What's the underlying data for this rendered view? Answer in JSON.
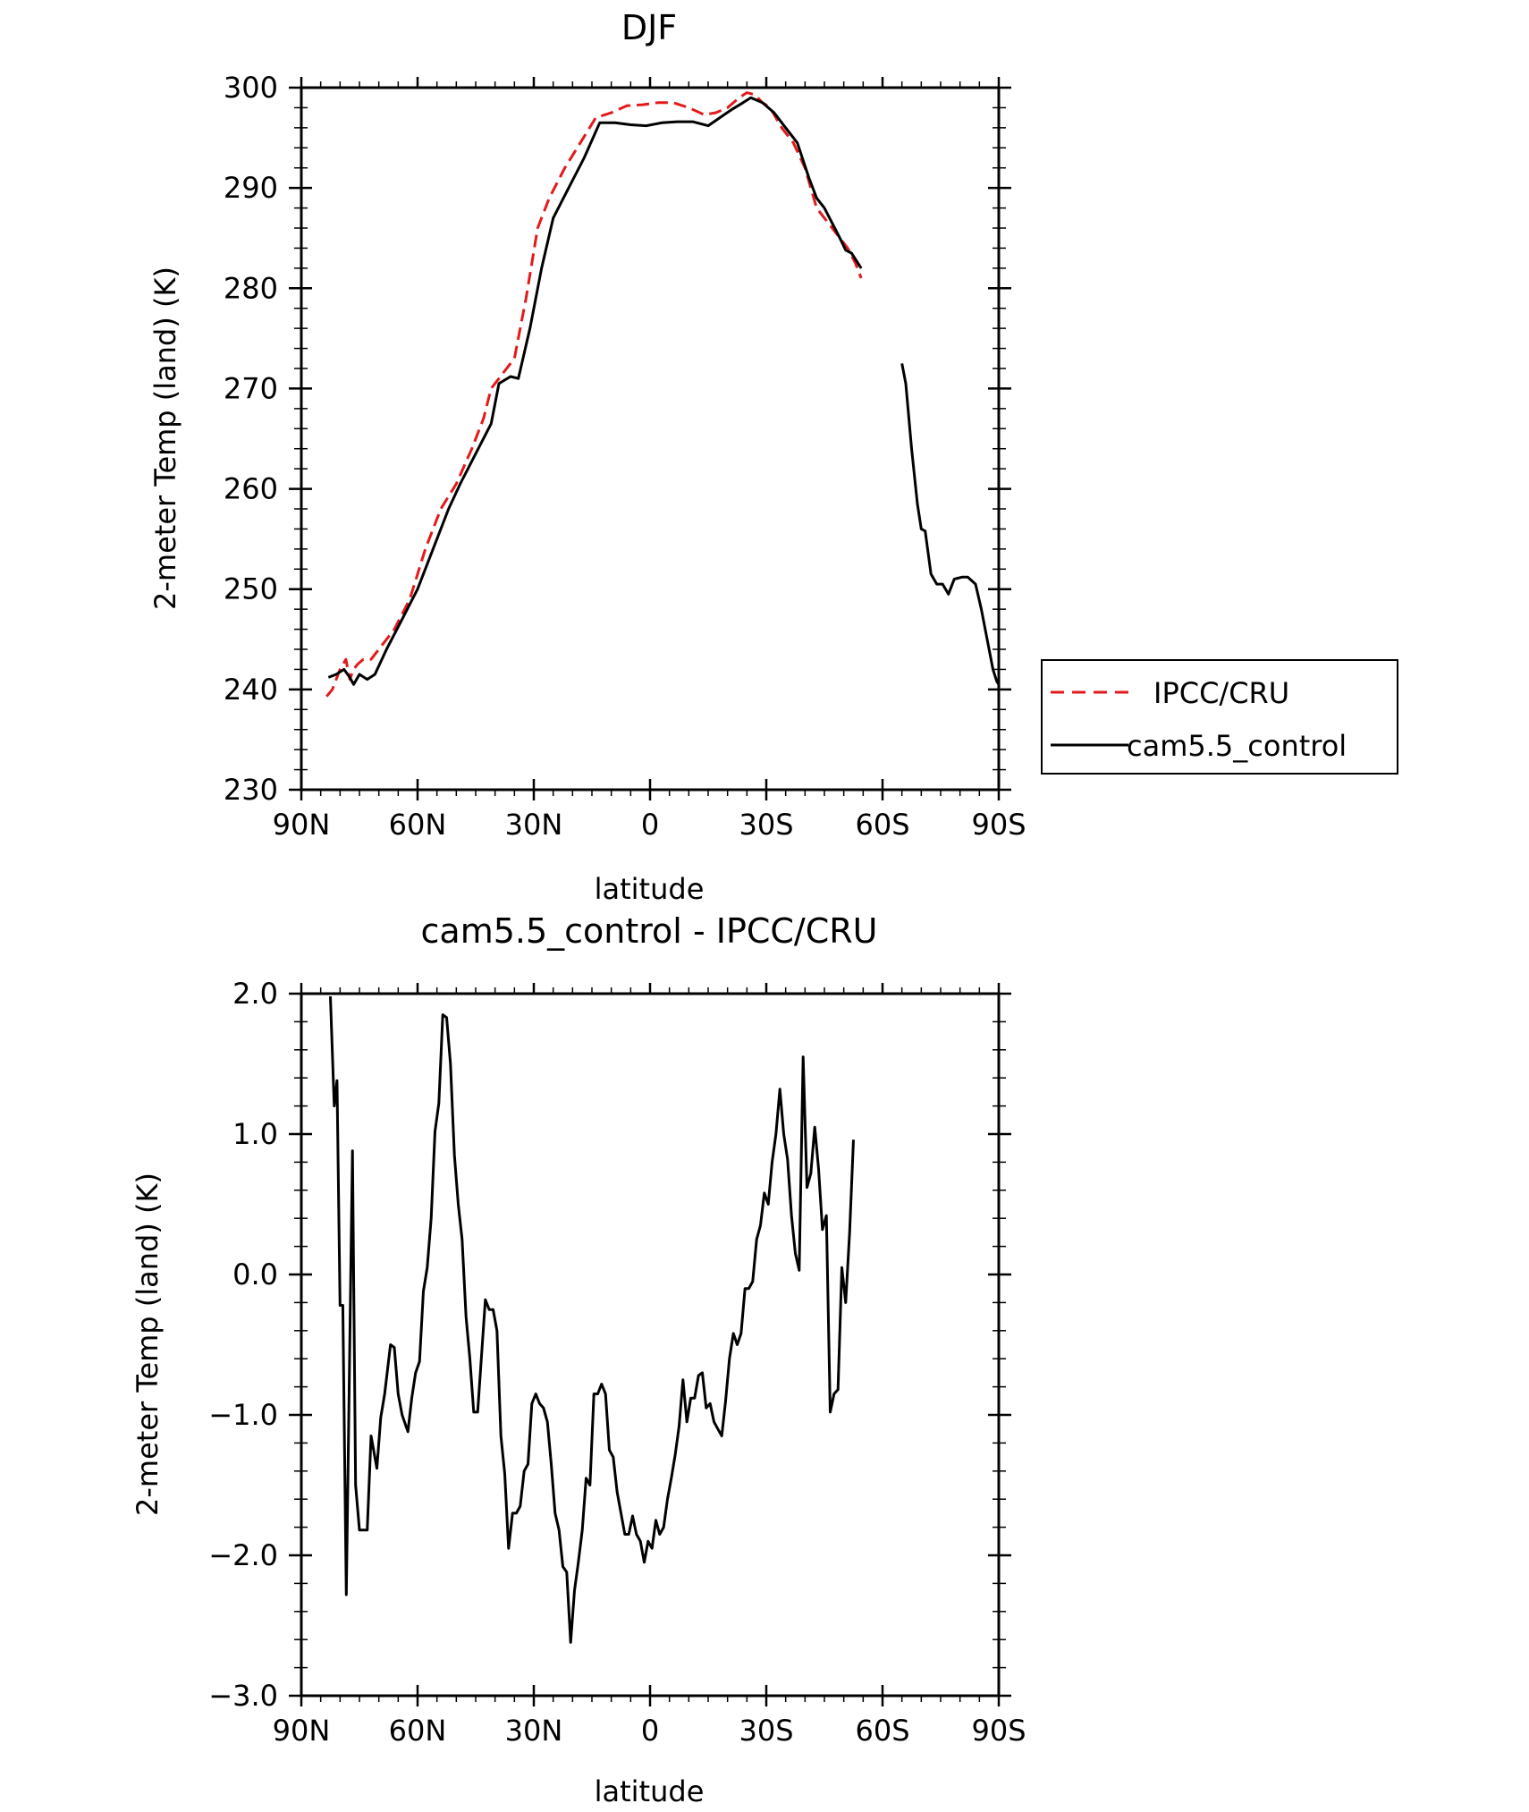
{
  "chart_data": [
    {
      "type": "line",
      "title": "DJF",
      "xlabel": "latitude",
      "ylabel": "2-meter Temp (land) (K)",
      "xlim": [
        90,
        -90
      ],
      "ylim": [
        230,
        300
      ],
      "xticks": [
        90,
        60,
        30,
        0,
        -30,
        -60,
        -90
      ],
      "xtick_labels": [
        "90N",
        "60N",
        "30N",
        "0",
        "30S",
        "60S",
        "90S"
      ],
      "yticks": [
        230,
        240,
        250,
        260,
        270,
        280,
        290,
        300
      ],
      "ytick_labels": [
        "230",
        "240",
        "250",
        "260",
        "270",
        "280",
        "290",
        "300"
      ],
      "grid": false,
      "legend": "right",
      "series": [
        {
          "name": "IPCC/CRU",
          "color": "#e31a1c",
          "dash": "dashed",
          "points": [
            [
              83.5,
              239.3
            ],
            [
              82,
              240
            ],
            [
              80,
              242
            ],
            [
              78.5,
              243
            ],
            [
              77.5,
              241
            ],
            [
              76.5,
              242
            ],
            [
              75.5,
              242.5
            ],
            [
              74,
              243
            ],
            [
              72,
              243
            ],
            [
              70,
              244
            ],
            [
              66,
              246
            ],
            [
              62,
              249
            ],
            [
              58,
              254
            ],
            [
              54,
              258
            ],
            [
              50,
              260.5
            ],
            [
              46,
              264
            ],
            [
              43,
              267
            ],
            [
              41,
              270
            ],
            [
              38,
              271.5
            ],
            [
              35,
              273
            ],
            [
              32,
              279
            ],
            [
              29,
              286
            ],
            [
              26,
              289
            ],
            [
              22,
              292
            ],
            [
              18,
              294.5
            ],
            [
              14,
              297
            ],
            [
              10,
              297.5
            ],
            [
              6,
              298.2
            ],
            [
              2,
              298.3
            ],
            [
              -2,
              298.5
            ],
            [
              -6,
              298.5
            ],
            [
              -10,
              298
            ],
            [
              -14,
              297.3
            ],
            [
              -17,
              297.5
            ],
            [
              -20,
              298
            ],
            [
              -23,
              299
            ],
            [
              -25,
              299.5
            ],
            [
              -27,
              299.3
            ],
            [
              -29,
              298.5
            ],
            [
              -31,
              298
            ],
            [
              -34,
              296
            ],
            [
              -37,
              294.5
            ],
            [
              -40,
              292
            ],
            [
              -43,
              288
            ],
            [
              -45,
              287
            ],
            [
              -47,
              286
            ],
            [
              -49,
              285
            ],
            [
              -51,
              284
            ],
            [
              -53,
              282.5
            ],
            [
              -54.5,
              281
            ]
          ]
        },
        {
          "name": "cam5.5_control",
          "color": "#000000",
          "dash": "solid",
          "points": [
            [
              83,
              241.2
            ],
            [
              81,
              241.5
            ],
            [
              79,
              242
            ],
            [
              77.5,
              241.2
            ],
            [
              76.5,
              240.5
            ],
            [
              75,
              241.5
            ],
            [
              73,
              241
            ],
            [
              71,
              241.5
            ],
            [
              68,
              244
            ],
            [
              64,
              247
            ],
            [
              60,
              250
            ],
            [
              56,
              254
            ],
            [
              52,
              258
            ],
            [
              49,
              260.5
            ],
            [
              45,
              263.5
            ],
            [
              41,
              266.5
            ],
            [
              39,
              270.5
            ],
            [
              36,
              271.2
            ],
            [
              34,
              271
            ],
            [
              31,
              276
            ],
            [
              28,
              282
            ],
            [
              25,
              287
            ],
            [
              21,
              290
            ],
            [
              17,
              293
            ],
            [
              13,
              296.5
            ],
            [
              9,
              296.5
            ],
            [
              5,
              296.3
            ],
            [
              1,
              296.2
            ],
            [
              -3,
              296.5
            ],
            [
              -7,
              296.6
            ],
            [
              -11,
              296.6
            ],
            [
              -15,
              296.2
            ],
            [
              -18,
              297
            ],
            [
              -21,
              297.8
            ],
            [
              -24,
              298.5
            ],
            [
              -26,
              299
            ],
            [
              -29,
              298.5
            ],
            [
              -32,
              297.5
            ],
            [
              -35,
              296
            ],
            [
              -38,
              294.5
            ],
            [
              -41,
              291
            ],
            [
              -43,
              289
            ],
            [
              -45,
              288
            ],
            [
              -47,
              286.5
            ],
            [
              -49,
              285
            ],
            [
              -50.5,
              283.8
            ],
            [
              -52,
              283.5
            ],
            [
              -54.5,
              282
            ]
          ],
          "points2": [
            [
              -65,
              272.5
            ],
            [
              -66,
              270.5
            ],
            [
              -67.5,
              264
            ],
            [
              -69,
              258.5
            ],
            [
              -70,
              256
            ],
            [
              -71,
              255.8
            ],
            [
              -72.5,
              251.5
            ],
            [
              -74,
              250.5
            ],
            [
              -75.5,
              250.5
            ],
            [
              -77,
              249.5
            ],
            [
              -78.5,
              251
            ],
            [
              -80.5,
              251.2
            ],
            [
              -82,
              251.2
            ],
            [
              -84,
              250.5
            ],
            [
              -85.5,
              248
            ],
            [
              -87,
              245
            ],
            [
              -88.5,
              242
            ],
            [
              -89.5,
              240.8
            ],
            [
              -90,
              240.5
            ]
          ]
        }
      ]
    },
    {
      "type": "line",
      "title": "cam5.5_control - IPCC/CRU",
      "xlabel": "latitude",
      "ylabel": "2-meter Temp (land) (K)",
      "xlim": [
        90,
        -90
      ],
      "ylim": [
        -3.0,
        2.0
      ],
      "xticks": [
        90,
        60,
        30,
        0,
        -30,
        -60,
        -90
      ],
      "xtick_labels": [
        "90N",
        "60N",
        "30N",
        "0",
        "30S",
        "60S",
        "90S"
      ],
      "yticks": [
        -3.0,
        -2.0,
        -1.0,
        0.0,
        1.0,
        2.0
      ],
      "ytick_labels": [
        "−3.0",
        "−2.0",
        "−1.0",
        "0.0",
        "1.0",
        "2.0"
      ],
      "grid": false,
      "series": [
        {
          "color": "#000000",
          "dash": "solid",
          "points": [
            [
              82.5,
              1.98
            ],
            [
              81.5,
              1.2
            ],
            [
              80.8,
              1.38
            ],
            [
              80,
              -0.22
            ],
            [
              79.3,
              -0.22
            ],
            [
              78.4,
              -2.28
            ],
            [
              76.8,
              0.88
            ],
            [
              76,
              -1.5
            ],
            [
              75,
              -1.82
            ],
            [
              74,
              -1.82
            ],
            [
              73,
              -1.82
            ],
            [
              72,
              -1.15
            ],
            [
              70.5,
              -1.38
            ],
            [
              69.5,
              -1.02
            ],
            [
              68.5,
              -0.85
            ],
            [
              67,
              -0.5
            ],
            [
              66,
              -0.52
            ],
            [
              65,
              -0.85
            ],
            [
              64,
              -1.0
            ],
            [
              62.5,
              -1.12
            ],
            [
              61.5,
              -0.88
            ],
            [
              60.5,
              -0.7
            ],
            [
              59.5,
              -0.62
            ],
            [
              58.5,
              -0.12
            ],
            [
              57.5,
              0.05
            ],
            [
              56.5,
              0.4
            ],
            [
              55.5,
              1.02
            ],
            [
              54.5,
              1.22
            ],
            [
              53.5,
              1.85
            ],
            [
              52.5,
              1.83
            ],
            [
              51.5,
              1.5
            ],
            [
              50.5,
              0.85
            ],
            [
              49.5,
              0.5
            ],
            [
              48.5,
              0.25
            ],
            [
              47.5,
              -0.3
            ],
            [
              46.5,
              -0.6
            ],
            [
              45.5,
              -0.98
            ],
            [
              44.5,
              -0.98
            ],
            [
              43.5,
              -0.58
            ],
            [
              42.5,
              -0.18
            ],
            [
              41.5,
              -0.25
            ],
            [
              40.5,
              -0.25
            ],
            [
              39.5,
              -0.4
            ],
            [
              38.5,
              -1.15
            ],
            [
              37.5,
              -1.42
            ],
            [
              36.5,
              -1.95
            ],
            [
              35.5,
              -1.7
            ],
            [
              34.5,
              -1.7
            ],
            [
              33.5,
              -1.65
            ],
            [
              32.5,
              -1.4
            ],
            [
              31.5,
              -1.35
            ],
            [
              30.5,
              -0.92
            ],
            [
              29.5,
              -0.85
            ],
            [
              28.5,
              -0.92
            ],
            [
              27.5,
              -0.95
            ],
            [
              26.5,
              -1.05
            ],
            [
              25.5,
              -1.35
            ],
            [
              24.5,
              -1.7
            ],
            [
              23.5,
              -1.82
            ],
            [
              22.5,
              -2.08
            ],
            [
              21.5,
              -2.12
            ],
            [
              20.5,
              -2.62
            ],
            [
              19.5,
              -2.25
            ],
            [
              18.5,
              -2.05
            ],
            [
              17.5,
              -1.82
            ],
            [
              16.5,
              -1.45
            ],
            [
              15.5,
              -1.5
            ],
            [
              14.5,
              -0.85
            ],
            [
              13.5,
              -0.85
            ],
            [
              12.5,
              -0.78
            ],
            [
              11.5,
              -0.85
            ],
            [
              10.5,
              -1.25
            ],
            [
              9.5,
              -1.3
            ],
            [
              8.5,
              -1.55
            ],
            [
              7.5,
              -1.7
            ],
            [
              6.5,
              -1.85
            ],
            [
              5.5,
              -1.85
            ],
            [
              4.5,
              -1.72
            ],
            [
              3.5,
              -1.85
            ],
            [
              2.5,
              -1.9
            ],
            [
              1.5,
              -2.05
            ],
            [
              0.5,
              -1.9
            ],
            [
              -0.5,
              -1.95
            ],
            [
              -1.5,
              -1.75
            ],
            [
              -2.5,
              -1.85
            ],
            [
              -3.5,
              -1.8
            ],
            [
              -4.5,
              -1.6
            ],
            [
              -5.5,
              -1.45
            ],
            [
              -6.5,
              -1.28
            ],
            [
              -7.5,
              -1.08
            ],
            [
              -8.5,
              -0.75
            ],
            [
              -9.5,
              -1.05
            ],
            [
              -10.5,
              -0.88
            ],
            [
              -11.5,
              -0.88
            ],
            [
              -12.5,
              -0.72
            ],
            [
              -13.5,
              -0.7
            ],
            [
              -14.5,
              -0.95
            ],
            [
              -15.5,
              -0.92
            ],
            [
              -16.5,
              -1.05
            ],
            [
              -17.5,
              -1.1
            ],
            [
              -18.5,
              -1.15
            ],
            [
              -19.5,
              -0.9
            ],
            [
              -20.5,
              -0.6
            ],
            [
              -21.5,
              -0.42
            ],
            [
              -22.5,
              -0.5
            ],
            [
              -23.5,
              -0.42
            ],
            [
              -24.5,
              -0.1
            ],
            [
              -25.5,
              -0.1
            ],
            [
              -26.5,
              -0.05
            ],
            [
              -27.5,
              0.25
            ],
            [
              -28.5,
              0.35
            ],
            [
              -29.5,
              0.58
            ],
            [
              -30.5,
              0.5
            ],
            [
              -31.5,
              0.8
            ],
            [
              -32.5,
              1.0
            ],
            [
              -33.5,
              1.32
            ],
            [
              -34.5,
              1.0
            ],
            [
              -35.5,
              0.82
            ],
            [
              -36.5,
              0.42
            ],
            [
              -37.5,
              0.15
            ],
            [
              -38.5,
              0.03
            ],
            [
              -39.5,
              1.55
            ],
            [
              -40.5,
              0.62
            ],
            [
              -41.5,
              0.72
            ],
            [
              -42.5,
              1.05
            ],
            [
              -43.5,
              0.75
            ],
            [
              -44.5,
              0.32
            ],
            [
              -45.5,
              0.42
            ],
            [
              -46.5,
              -0.98
            ],
            [
              -47.5,
              -0.85
            ],
            [
              -48.5,
              -0.82
            ],
            [
              -49.5,
              0.05
            ],
            [
              -50.5,
              -0.2
            ],
            [
              -51.5,
              0.3
            ],
            [
              -52.5,
              0.96
            ]
          ]
        }
      ]
    }
  ]
}
